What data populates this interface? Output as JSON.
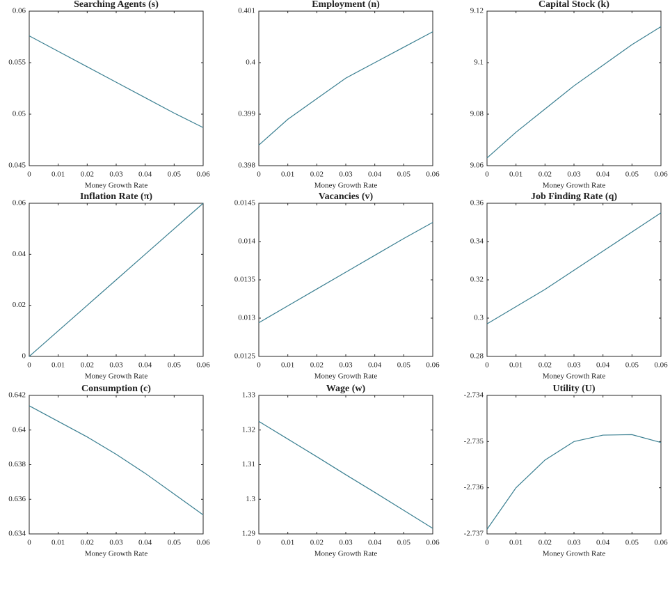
{
  "chart_data": [
    {
      "type": "line",
      "title": "Searching Agents (s)",
      "xlabel": "Money Growth Rate",
      "x": [
        0,
        0.01,
        0.02,
        0.03,
        0.04,
        0.05,
        0.06
      ],
      "values": [
        0.0576,
        0.0561,
        0.0546,
        0.0531,
        0.0516,
        0.0501,
        0.0487
      ],
      "color": "#3a7f91",
      "xlim": [
        0,
        0.06
      ],
      "xticks": [
        0,
        0.01,
        0.02,
        0.03,
        0.04,
        0.05,
        0.06
      ],
      "ylim": [
        0.045,
        0.06
      ],
      "yticks": [
        0.045,
        0.05,
        0.055,
        0.06
      ]
    },
    {
      "type": "line",
      "title": "Employment (n)",
      "xlabel": "Money Growth Rate",
      "x": [
        0,
        0.01,
        0.02,
        0.03,
        0.04,
        0.05,
        0.06
      ],
      "values": [
        0.3984,
        0.3989,
        0.3993,
        0.3997,
        0.4,
        0.4003,
        0.4006
      ],
      "color": "#3a7f91",
      "xlim": [
        0,
        0.06
      ],
      "xticks": [
        0,
        0.01,
        0.02,
        0.03,
        0.04,
        0.05,
        0.06
      ],
      "ylim": [
        0.398,
        0.401
      ],
      "yticks": [
        0.398,
        0.399,
        0.4,
        0.401
      ]
    },
    {
      "type": "line",
      "title": "Capital Stock (k)",
      "xlabel": "Money Growth Rate",
      "x": [
        0,
        0.01,
        0.02,
        0.03,
        0.04,
        0.05,
        0.06
      ],
      "values": [
        9.063,
        9.073,
        9.082,
        9.091,
        9.099,
        9.107,
        9.114
      ],
      "color": "#3a7f91",
      "xlim": [
        0,
        0.06
      ],
      "xticks": [
        0,
        0.01,
        0.02,
        0.03,
        0.04,
        0.05,
        0.06
      ],
      "ylim": [
        9.06,
        9.12
      ],
      "yticks": [
        9.06,
        9.08,
        9.1,
        9.12
      ]
    },
    {
      "type": "line",
      "title": "Inflation Rate (π)",
      "xlabel": "Money Growth Rate",
      "x": [
        0,
        0.01,
        0.02,
        0.03,
        0.04,
        0.05,
        0.06
      ],
      "values": [
        0,
        0.01,
        0.02,
        0.03,
        0.04,
        0.05,
        0.06
      ],
      "color": "#3a7f91",
      "xlim": [
        0,
        0.06
      ],
      "xticks": [
        0,
        0.01,
        0.02,
        0.03,
        0.04,
        0.05,
        0.06
      ],
      "ylim": [
        0,
        0.06
      ],
      "yticks": [
        0,
        0.02,
        0.04,
        0.06
      ]
    },
    {
      "type": "line",
      "title": "Vacancies (v)",
      "xlabel": "Money Growth Rate",
      "x": [
        0,
        0.01,
        0.02,
        0.03,
        0.04,
        0.05,
        0.06
      ],
      "values": [
        0.01294,
        0.01316,
        0.01338,
        0.0136,
        0.01382,
        0.01404,
        0.01425
      ],
      "color": "#3a7f91",
      "xlim": [
        0,
        0.06
      ],
      "xticks": [
        0,
        0.01,
        0.02,
        0.03,
        0.04,
        0.05,
        0.06
      ],
      "ylim": [
        0.0125,
        0.0145
      ],
      "yticks": [
        0.0125,
        0.013,
        0.0135,
        0.014,
        0.0145
      ]
    },
    {
      "type": "line",
      "title": "Job Finding Rate (q)",
      "xlabel": "Money Growth Rate",
      "x": [
        0,
        0.01,
        0.02,
        0.03,
        0.04,
        0.05,
        0.06
      ],
      "values": [
        0.297,
        0.306,
        0.315,
        0.325,
        0.335,
        0.345,
        0.355
      ],
      "color": "#3a7f91",
      "xlim": [
        0,
        0.06
      ],
      "xticks": [
        0,
        0.01,
        0.02,
        0.03,
        0.04,
        0.05,
        0.06
      ],
      "ylim": [
        0.28,
        0.36
      ],
      "yticks": [
        0.28,
        0.3,
        0.32,
        0.34,
        0.36
      ]
    },
    {
      "type": "line",
      "title": "Consumption (c)",
      "xlabel": "Money Growth Rate",
      "x": [
        0,
        0.01,
        0.02,
        0.03,
        0.04,
        0.05,
        0.06
      ],
      "values": [
        0.6414,
        0.6405,
        0.6396,
        0.6386,
        0.6375,
        0.6363,
        0.6351
      ],
      "color": "#3a7f91",
      "xlim": [
        0,
        0.06
      ],
      "xticks": [
        0,
        0.01,
        0.02,
        0.03,
        0.04,
        0.05,
        0.06
      ],
      "ylim": [
        0.634,
        0.642
      ],
      "yticks": [
        0.634,
        0.636,
        0.638,
        0.64,
        0.642
      ]
    },
    {
      "type": "line",
      "title": "Wage (w)",
      "xlabel": "Money Growth Rate",
      "x": [
        0,
        0.01,
        0.02,
        0.03,
        0.04,
        0.05,
        0.06
      ],
      "values": [
        1.3225,
        1.3174,
        1.3123,
        1.3071,
        1.302,
        1.2968,
        1.2916
      ],
      "color": "#3a7f91",
      "xlim": [
        0,
        0.06
      ],
      "xticks": [
        0,
        0.01,
        0.02,
        0.03,
        0.04,
        0.05,
        0.06
      ],
      "ylim": [
        1.29,
        1.33
      ],
      "yticks": [
        1.29,
        1.3,
        1.31,
        1.32,
        1.33
      ]
    },
    {
      "type": "line",
      "title": "Utility (U)",
      "xlabel": "Money Growth Rate",
      "x": [
        0,
        0.01,
        0.02,
        0.03,
        0.04,
        0.05,
        0.06
      ],
      "values": [
        -2.7369,
        -2.736,
        -2.7354,
        -2.735,
        -2.73486,
        -2.73485,
        -2.73502
      ],
      "color": "#3a7f91",
      "xlim": [
        0,
        0.06
      ],
      "xticks": [
        0,
        0.01,
        0.02,
        0.03,
        0.04,
        0.05,
        0.06
      ],
      "ylim": [
        -2.737,
        -2.734
      ],
      "yticks": [
        -2.737,
        -2.736,
        -2.735,
        -2.734
      ]
    }
  ]
}
